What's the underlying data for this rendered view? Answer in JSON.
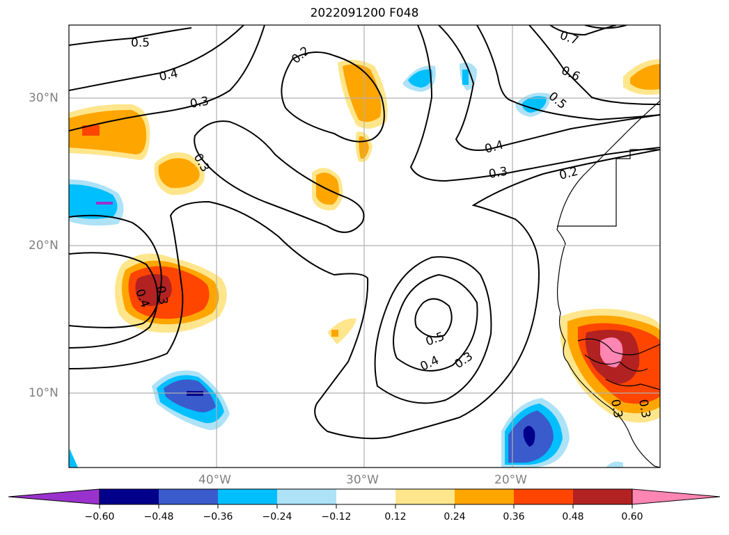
{
  "title": "2022091200 F048",
  "lat_labels": [
    "30°N",
    "20°N",
    "10°N"
  ],
  "lon_labels": [
    "40°W",
    "30°W",
    "20°W"
  ],
  "colorbar": {
    "ticks": [
      "−0.60",
      "−0.48",
      "−0.36",
      "−0.24",
      "−0.12",
      "0.12",
      "0.24",
      "0.36",
      "0.48",
      "0.60"
    ],
    "colors": [
      "#9932cc",
      "#00008b",
      "#3a5bcc",
      "#00bfff",
      "#ade2f7",
      "#ffffff",
      "#ffe68c",
      "#ffa500",
      "#ff4500",
      "#b22222",
      "#ff85b3"
    ]
  },
  "contour_labels": [
    "0.5",
    "0.4",
    "0.3",
    "0.3",
    "0.2",
    "0.7",
    "0.6",
    "0.5",
    "0.4",
    "0.3",
    "0.2",
    "0.4",
    "0.3",
    "0.5",
    "0.4",
    "0.3",
    "0.3",
    "0.3"
  ]
}
